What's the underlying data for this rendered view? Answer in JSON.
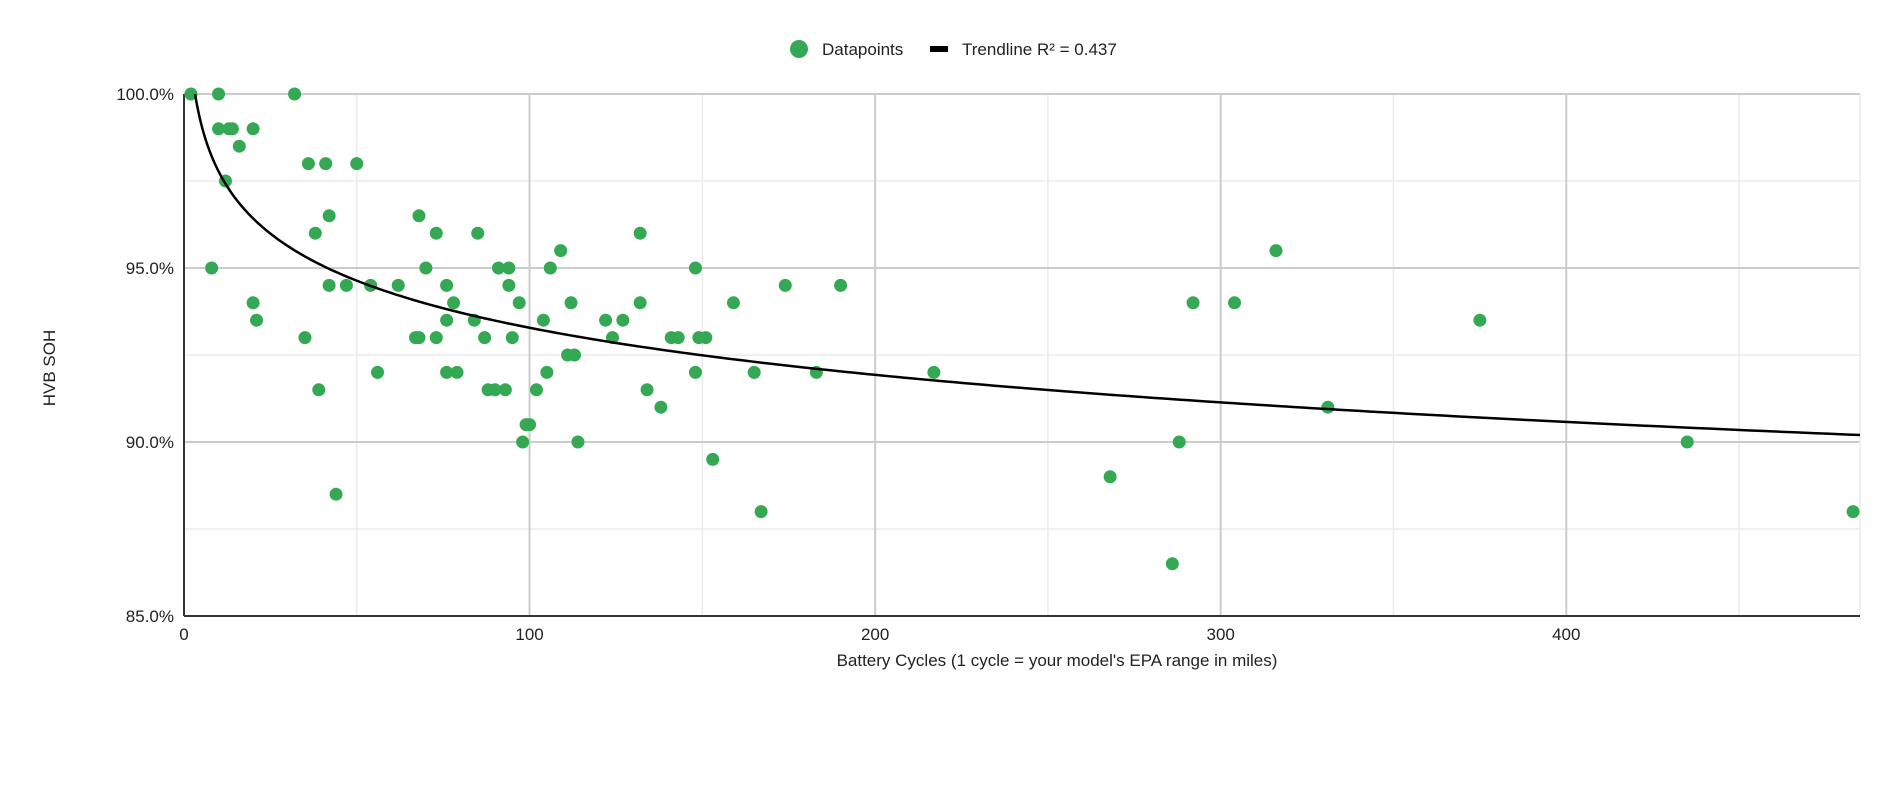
{
  "chart_data": {
    "type": "scatter",
    "xlabel": "Battery Cycles (1 cycle = your model's EPA range in miles)",
    "ylabel": "HVB SOH",
    "xlim": [
      0,
      485
    ],
    "ylim": [
      85.0,
      100.0
    ],
    "x_ticks": [
      0,
      100,
      200,
      300,
      400
    ],
    "x_tick_labels": [
      "0",
      "100",
      "200",
      "300",
      "400"
    ],
    "y_ticks": [
      85.0,
      90.0,
      95.0,
      100.0
    ],
    "y_tick_labels": [
      "85.0%",
      "90.0%",
      "95.0%",
      "100.0%"
    ],
    "grid": true,
    "legend_position": "top",
    "colors": {
      "points": "#34a853",
      "trendline": "#000000",
      "major_grid": "#cccccc",
      "minor_grid": "#ebebeb",
      "axis": "#333333"
    },
    "legend": {
      "points_label": "Datapoints",
      "trend_label": "Trendline R² = 0.437"
    },
    "series": [
      {
        "name": "Datapoints",
        "points": [
          [
            2,
            100.0
          ],
          [
            10,
            100.0
          ],
          [
            32,
            100.0
          ],
          [
            10,
            99.0
          ],
          [
            13,
            99.0
          ],
          [
            14,
            99.0
          ],
          [
            20,
            99.0
          ],
          [
            16,
            98.5
          ],
          [
            36,
            98.0
          ],
          [
            41,
            98.0
          ],
          [
            50,
            98.0
          ],
          [
            12,
            97.5
          ],
          [
            68,
            96.5
          ],
          [
            42,
            96.5
          ],
          [
            38,
            96.0
          ],
          [
            73,
            96.0
          ],
          [
            85,
            96.0
          ],
          [
            132,
            96.0
          ],
          [
            8,
            95.0
          ],
          [
            70,
            95.0
          ],
          [
            91,
            95.0
          ],
          [
            94,
            95.0
          ],
          [
            106,
            95.0
          ],
          [
            148,
            95.0
          ],
          [
            109,
            95.5
          ],
          [
            316,
            95.5
          ],
          [
            42,
            94.5
          ],
          [
            47,
            94.5
          ],
          [
            54,
            94.5
          ],
          [
            62,
            94.5
          ],
          [
            76,
            94.5
          ],
          [
            94,
            94.5
          ],
          [
            174,
            94.5
          ],
          [
            190,
            94.5
          ],
          [
            20,
            94.0
          ],
          [
            78,
            94.0
          ],
          [
            97,
            94.0
          ],
          [
            112,
            94.0
          ],
          [
            132,
            94.0
          ],
          [
            159,
            94.0
          ],
          [
            292,
            94.0
          ],
          [
            304,
            94.0
          ],
          [
            21,
            93.5
          ],
          [
            76,
            93.5
          ],
          [
            84,
            93.5
          ],
          [
            104,
            93.5
          ],
          [
            122,
            93.5
          ],
          [
            127,
            93.5
          ],
          [
            375,
            93.5
          ],
          [
            35,
            93.0
          ],
          [
            67,
            93.0
          ],
          [
            68,
            93.0
          ],
          [
            73,
            93.0
          ],
          [
            87,
            93.0
          ],
          [
            95,
            93.0
          ],
          [
            124,
            93.0
          ],
          [
            141,
            93.0
          ],
          [
            143,
            93.0
          ],
          [
            149,
            93.0
          ],
          [
            151,
            93.0
          ],
          [
            111,
            92.5
          ],
          [
            113,
            92.5
          ],
          [
            56,
            92.0
          ],
          [
            76,
            92.0
          ],
          [
            79,
            92.0
          ],
          [
            105,
            92.0
          ],
          [
            148,
            92.0
          ],
          [
            165,
            92.0
          ],
          [
            183,
            92.0
          ],
          [
            217,
            92.0
          ],
          [
            39,
            91.5
          ],
          [
            88,
            91.5
          ],
          [
            90,
            91.5
          ],
          [
            93,
            91.5
          ],
          [
            102,
            91.5
          ],
          [
            134,
            91.5
          ],
          [
            138,
            91.0
          ],
          [
            331,
            91.0
          ],
          [
            99,
            90.5
          ],
          [
            100,
            90.5
          ],
          [
            98,
            90.0
          ],
          [
            114,
            90.0
          ],
          [
            288,
            90.0
          ],
          [
            435,
            90.0
          ],
          [
            153,
            89.5
          ],
          [
            268,
            89.0
          ],
          [
            44,
            88.5
          ],
          [
            167,
            88.0
          ],
          [
            483,
            88.0
          ],
          [
            286,
            86.5
          ]
        ]
      }
    ],
    "trendline": {
      "type": "logarithmic",
      "r_squared": 0.437,
      "x_range": [
        2,
        485
      ]
    }
  }
}
